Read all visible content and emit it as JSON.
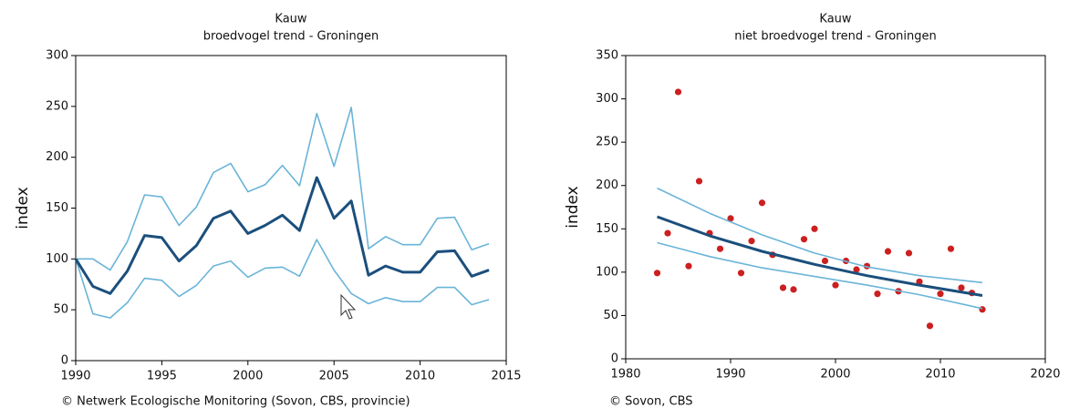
{
  "chart_data": [
    {
      "type": "line",
      "title": "Kauw",
      "subtitle": "broedvogel trend - Groningen",
      "ylabel": "index",
      "credit": "© Netwerk Ecologische Monitoring (Sovon, CBS, provincie)",
      "x": [
        1990,
        1991,
        1992,
        1993,
        1994,
        1995,
        1996,
        1997,
        1998,
        1999,
        2000,
        2001,
        2002,
        2003,
        2004,
        2005,
        2006,
        2007,
        2008,
        2009,
        2010,
        2011,
        2012,
        2013,
        2014
      ],
      "series": [
        {
          "color": "#6ab4d8",
          "width": 1.6,
          "values": [
            100,
            100,
            89,
            117,
            163,
            161,
            133,
            151,
            185,
            194,
            166,
            173,
            192,
            172,
            243,
            191,
            249,
            110,
            122,
            114,
            114,
            140,
            141,
            109,
            115
          ]
        },
        {
          "color": "#6ab4d8",
          "width": 1.6,
          "values": [
            100,
            46,
            42,
            57,
            81,
            79,
            63,
            74,
            93,
            98,
            82,
            91,
            92,
            83,
            119,
            89,
            66,
            56,
            62,
            58,
            58,
            72,
            72,
            55,
            60
          ]
        },
        {
          "color": "#1b4f7c",
          "width": 3,
          "values": [
            100,
            73,
            66,
            88,
            123,
            121,
            98,
            113,
            140,
            147,
            125,
            133,
            143,
            128,
            180,
            140,
            157,
            84,
            93,
            87,
            87,
            107,
            108,
            83,
            89
          ]
        }
      ],
      "xlim": [
        1990,
        2015
      ],
      "xticks": [
        1990,
        1995,
        2000,
        2005,
        2010,
        2015
      ],
      "ylim": [
        0,
        300
      ],
      "yticks": [
        0,
        50,
        100,
        150,
        200,
        250,
        300
      ]
    },
    {
      "type": "scatter",
      "title": "Kauw",
      "subtitle": "niet broedvogel trend - Groningen",
      "ylabel": "index",
      "credit": "© Sovon, CBS",
      "series": [
        {
          "style": "points",
          "color": "#cc1f1f",
          "x": [
            1983,
            1984,
            1985,
            1986,
            1987,
            1988,
            1989,
            1990,
            1991,
            1992,
            1993,
            1994,
            1995,
            1996,
            1997,
            1998,
            1999,
            2000,
            2001,
            2002,
            2003,
            2004,
            2005,
            2006,
            2007,
            2008,
            2009,
            2010,
            2011,
            2012,
            2013,
            2014
          ],
          "values": [
            99,
            145,
            308,
            107,
            205,
            145,
            127,
            162,
            99,
            136,
            180,
            120,
            82,
            80,
            138,
            150,
            113,
            85,
            113,
            103,
            107,
            75,
            124,
            78,
            122,
            89,
            38,
            75,
            127,
            82,
            76,
            57
          ]
        },
        {
          "style": "line",
          "color": "#6ab4d8",
          "width": 1.6,
          "x": [
            1983,
            1988,
            1993,
            1998,
            2003,
            2008,
            2014
          ],
          "values": [
            197,
            168,
            143,
            122,
            106,
            96,
            88
          ]
        },
        {
          "style": "line",
          "color": "#6ab4d8",
          "width": 1.6,
          "x": [
            1983,
            1988,
            1993,
            1998,
            2003,
            2008,
            2014
          ],
          "values": [
            134,
            118,
            105,
            95,
            85,
            74,
            58
          ]
        },
        {
          "style": "line",
          "color": "#1b4f7c",
          "width": 3,
          "x": [
            1983,
            1988,
            1993,
            1998,
            2003,
            2008,
            2014
          ],
          "values": [
            164,
            142,
            124,
            109,
            96,
            85,
            73
          ]
        }
      ],
      "xlim": [
        1980,
        2020
      ],
      "xticks": [
        1980,
        1990,
        2000,
        2010,
        2020
      ],
      "ylim": [
        0,
        350
      ],
      "yticks": [
        0,
        50,
        100,
        150,
        200,
        250,
        300,
        350
      ]
    }
  ]
}
